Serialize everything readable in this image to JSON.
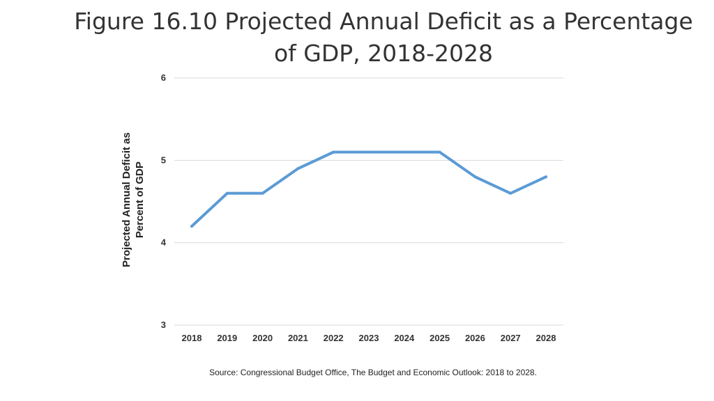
{
  "slide": {
    "title": "Figure 16.10 Projected Annual Deficit as a Percentage of GDP, 2018-2028",
    "source": "Source: Congressional Budget Office, The Budget and Economic Outlook: 2018 to 2028."
  },
  "chart_data": {
    "type": "line",
    "title": "",
    "xlabel": "",
    "ylabel_lines": [
      "Projected Annual Deficit as",
      "Percent of GDP"
    ],
    "categories": [
      "2018",
      "2019",
      "2020",
      "2021",
      "2022",
      "2023",
      "2024",
      "2025",
      "2026",
      "2027",
      "2028"
    ],
    "series": [
      {
        "name": "Projected Annual Deficit",
        "values": [
          4.2,
          4.6,
          4.6,
          4.9,
          5.1,
          5.1,
          5.1,
          5.1,
          4.8,
          4.6,
          4.8
        ]
      }
    ],
    "ylim": [
      3,
      6
    ],
    "yticks": [
      3,
      4,
      5,
      6
    ],
    "grid": true,
    "line_color": "#5b9bd5",
    "grid_color": "#d9d9d9"
  }
}
